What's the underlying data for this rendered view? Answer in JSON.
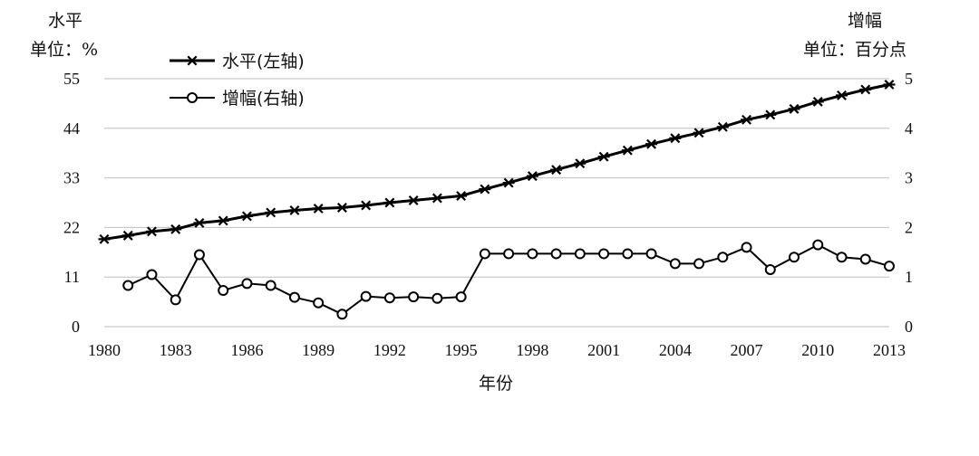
{
  "chart_data": {
    "type": "line",
    "left_axis": {
      "title": "水平",
      "unit": "单位：%",
      "ylim": [
        0,
        55
      ],
      "ticks": [
        0,
        11,
        22,
        33,
        44,
        55
      ]
    },
    "right_axis": {
      "title": "增幅",
      "unit": "单位：百分点",
      "ylim": [
        0,
        5
      ],
      "ticks": [
        0,
        1,
        2,
        3,
        4,
        5
      ]
    },
    "xlabel": "年份",
    "x_ticks": [
      1980,
      1983,
      1986,
      1989,
      1992,
      1995,
      1998,
      2001,
      2004,
      2007,
      2010,
      2013
    ],
    "x": [
      1980,
      1981,
      1982,
      1983,
      1984,
      1985,
      1986,
      1987,
      1988,
      1989,
      1990,
      1991,
      1992,
      1993,
      1994,
      1995,
      1996,
      1997,
      1998,
      1999,
      2000,
      2001,
      2002,
      2003,
      2004,
      2005,
      2006,
      2007,
      2008,
      2009,
      2010,
      2011,
      2012,
      2013
    ],
    "grid": true,
    "legend_position": "top-left",
    "series": [
      {
        "name": "水平(左轴)",
        "axis": "left",
        "marker": "star",
        "values": [
          19.4,
          20.2,
          21.1,
          21.6,
          23.0,
          23.5,
          24.5,
          25.3,
          25.8,
          26.2,
          26.4,
          26.9,
          27.5,
          28.0,
          28.5,
          29.0,
          30.5,
          31.9,
          33.4,
          34.8,
          36.2,
          37.7,
          39.1,
          40.5,
          41.8,
          43.0,
          44.3,
          45.9,
          47.0,
          48.3,
          49.9,
          51.3,
          52.6,
          53.7
        ]
      },
      {
        "name": "增幅(右轴)",
        "axis": "right",
        "marker": "circle",
        "values": [
          null,
          0.83,
          1.05,
          0.54,
          1.45,
          0.73,
          0.87,
          0.83,
          0.59,
          0.48,
          0.25,
          0.61,
          0.58,
          0.6,
          0.57,
          0.6,
          1.47,
          1.47,
          1.47,
          1.47,
          1.47,
          1.47,
          1.47,
          1.47,
          1.27,
          1.27,
          1.4,
          1.6,
          1.15,
          1.4,
          1.65,
          1.4,
          1.36,
          1.22
        ]
      }
    ]
  }
}
